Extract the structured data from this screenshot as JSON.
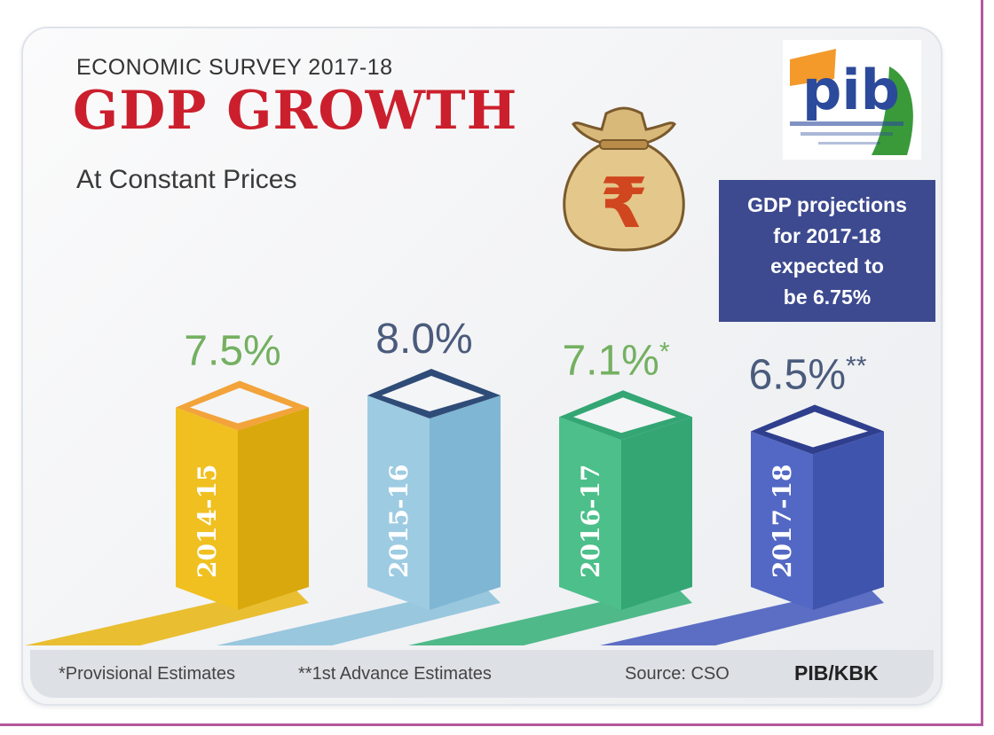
{
  "header": {
    "survey": "ECONOMIC SURVEY 2017-18",
    "title": "GDP GROWTH",
    "subtitle": "At Constant Prices"
  },
  "projection_box": {
    "lines": [
      "GDP projections",
      "for 2017-18",
      "expected to",
      "be 6.75%"
    ]
  },
  "logo": {
    "text": "pib"
  },
  "bag_icon": "rupee-money-bag-icon",
  "chart_data": {
    "type": "bar",
    "title": "GDP GROWTH",
    "subtitle": "At Constant Prices",
    "categories": [
      "2014-15",
      "2015-16",
      "2016-17",
      "2017-18"
    ],
    "values": [
      7.5,
      8.0,
      7.1,
      6.5
    ],
    "units": "%",
    "value_labels": [
      "7.5%",
      "8.0%",
      "7.1%",
      "6.5%"
    ],
    "value_markers": [
      "",
      "",
      "*",
      "**"
    ],
    "colors": [
      {
        "front": "#f0c020",
        "side": "#d9a80c",
        "top": "#f2a33a",
        "label": "#74b061",
        "shadow": "#e8b81c"
      },
      {
        "front": "#9dcbe2",
        "side": "#7eb6d3",
        "top": "#2f4c78",
        "label": "#4a5b7c",
        "shadow": "#8ec2dc"
      },
      {
        "front": "#4cbf8a",
        "side": "#33a674",
        "top": "#33a674",
        "label": "#74b061",
        "shadow": "#3db37d"
      },
      {
        "front": "#5368c4",
        "side": "#3f54ad",
        "top": "#2f3f8e",
        "label": "#4a5b7c",
        "shadow": "#4a5fbf"
      }
    ]
  },
  "footer": {
    "provisional": "*Provisional Estimates",
    "advance": "**1st Advance Estimates",
    "source": "Source: CSO",
    "credit": "PIB/KBK"
  }
}
